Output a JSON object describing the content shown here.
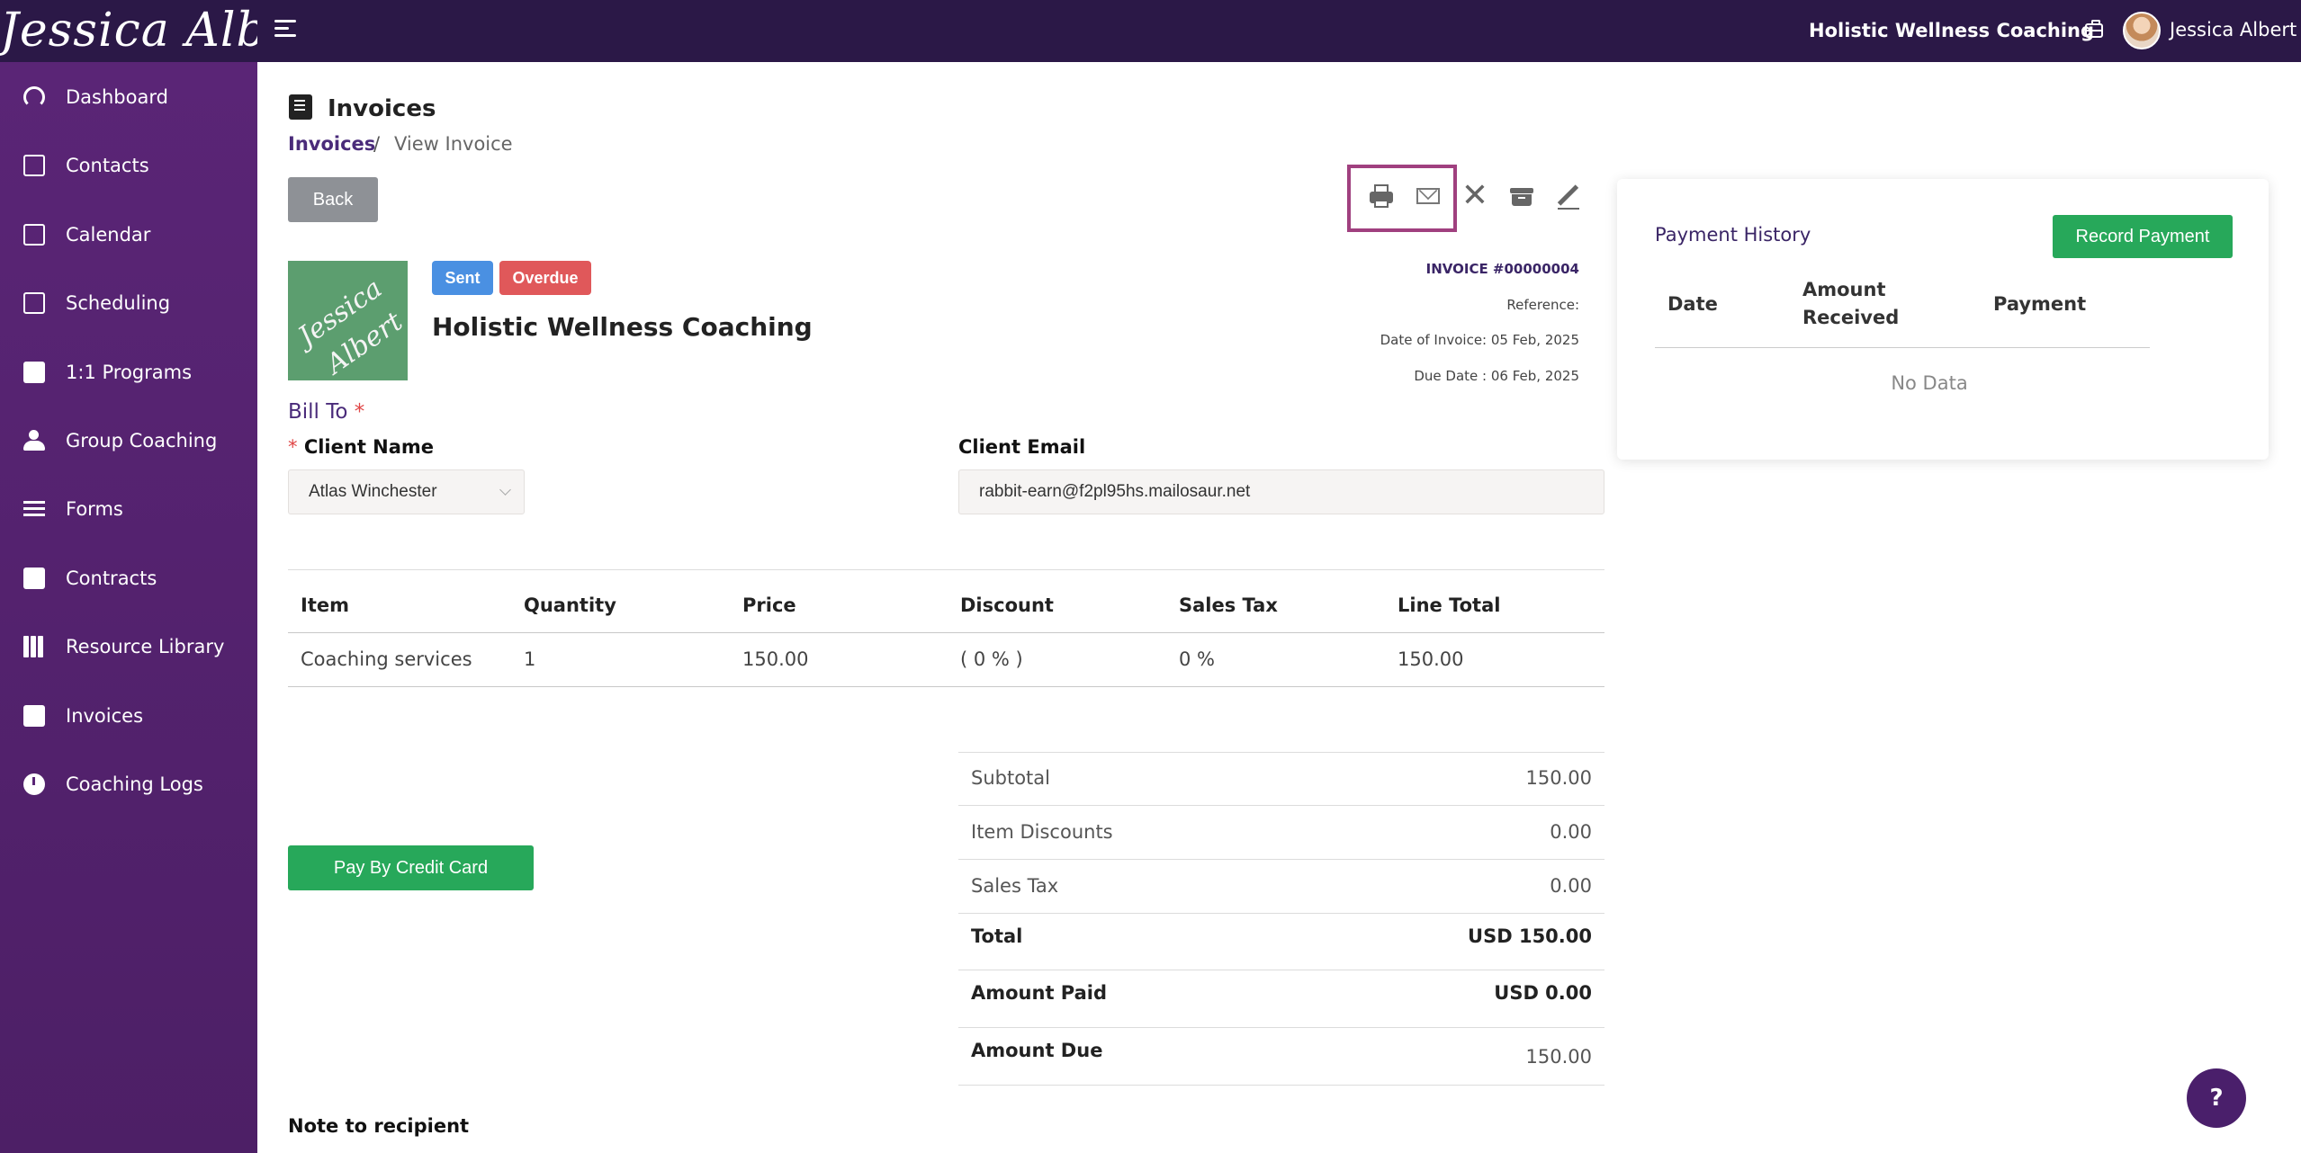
{
  "topbar": {
    "logo_text": "Jessica Albert",
    "business_name": "Holistic Wellness Coaching",
    "user_name": "Jessica Albert"
  },
  "sidebar": {
    "items": [
      {
        "label": "Dashboard",
        "icon": "dashboard-icon"
      },
      {
        "label": "Contacts",
        "icon": "contacts-icon"
      },
      {
        "label": "Calendar",
        "icon": "calendar-icon"
      },
      {
        "label": "Scheduling",
        "icon": "scheduling-icon"
      },
      {
        "label": "1:1 Programs",
        "icon": "book-icon"
      },
      {
        "label": "Group Coaching",
        "icon": "group-icon"
      },
      {
        "label": "Forms",
        "icon": "forms-icon"
      },
      {
        "label": "Contracts",
        "icon": "contract-sign-icon"
      },
      {
        "label": "Resource Library",
        "icon": "books-icon"
      },
      {
        "label": "Invoices",
        "icon": "invoice-icon"
      },
      {
        "label": "Coaching Logs",
        "icon": "clock-icon"
      }
    ]
  },
  "page": {
    "title": "Invoices",
    "breadcrumb": {
      "link": "Invoices",
      "separator": "/",
      "current": "View Invoice"
    },
    "back_label": "Back"
  },
  "invoice": {
    "logo_text_1": "Jessica",
    "logo_text_2": "Albert",
    "status_sent": "Sent",
    "status_overdue": "Overdue",
    "business_name": "Holistic Wellness Coaching",
    "number": "INVOICE #00000004",
    "reference": "Reference:",
    "date_of_invoice": "Date of Invoice: 05 Feb, 2025",
    "due_date": "Due Date : 06 Feb, 2025",
    "bill_to": "Bill To",
    "required_mark": "*",
    "client_name_label": "Client Name",
    "client_name_value": "Atlas Winchester",
    "client_email_label": "Client Email",
    "client_email_value": "rabbit-earn@f2pl95hs.mailosaur.net",
    "table": {
      "headers": [
        "Item",
        "Quantity",
        "Price",
        "Discount",
        "Sales Tax",
        "Line Total"
      ],
      "rows": [
        [
          "Coaching services",
          "1",
          "150.00",
          "( 0 % )",
          "0 %",
          "150.00"
        ]
      ]
    },
    "summary": {
      "subtotal_label": "Subtotal",
      "subtotal_value": "150.00",
      "item_discounts_label": "Item Discounts",
      "item_discounts_value": "0.00",
      "sales_tax_label": "Sales Tax",
      "sales_tax_value": "0.00",
      "total_label": "Total",
      "total_value": "USD 150.00",
      "amount_paid_label": "Amount Paid",
      "amount_paid_value": "USD 0.00",
      "amount_due_label": "Amount Due",
      "amount_due_value": "150.00"
    },
    "pay_button_label": "Pay By Credit Card",
    "note_label": "Note to recipient"
  },
  "payment_history": {
    "title": "Payment History",
    "record_button_label": "Record Payment",
    "headers": {
      "date": "Date",
      "amount_line1": "Amount",
      "amount_line2": "Received",
      "payment": "Payment"
    },
    "empty_text": "No Data"
  },
  "help_label": "?",
  "toolbar_icons": [
    "print-icon",
    "mail-icon",
    "close-icon",
    "archive-icon",
    "edit-icon"
  ],
  "colors": {
    "topbar": "#2b1847",
    "sidebar": "#5a2576",
    "accent_purple": "#4a2b7a",
    "green": "#27a85a",
    "badge_sent": "#4a90e2",
    "badge_overdue": "#e0585a",
    "highlight": "#a0407f"
  }
}
